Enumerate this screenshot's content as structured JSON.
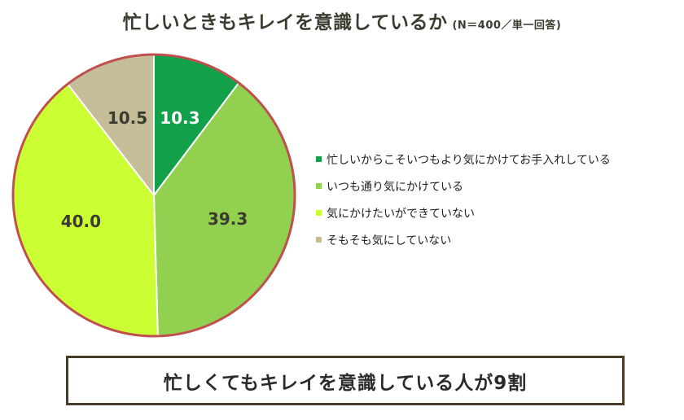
{
  "header": {
    "title": "忙しいときもキレイを意識しているか",
    "subtitle": "(N＝400／単一回答)"
  },
  "chart_data": {
    "type": "pie",
    "title": "忙しいときもキレイを意識しているか",
    "subtitle": "(N＝400／単一回答)",
    "legend_position": "right",
    "slices": [
      {
        "label": "忙しいからこそいつもより気にかけてお手入れしている",
        "value": 10.3,
        "color": "#12a04a",
        "label_color": "#ffffff"
      },
      {
        "label": "いつも通り気にかけている",
        "value": 39.3,
        "color": "#92d050",
        "label_color": "#3b3b2f"
      },
      {
        "label": "気にかけたいができていない",
        "value": 40.0,
        "color": "#ccff33",
        "label_color": "#3b3b2f"
      },
      {
        "label": "そもそも気にしていない",
        "value": 10.5,
        "color": "#c4bd97",
        "label_color": "#3b3b2f"
      }
    ],
    "edge_color": "#c0504d"
  },
  "banner": {
    "text": "忙しくてもキレイを意識している人が9割"
  }
}
